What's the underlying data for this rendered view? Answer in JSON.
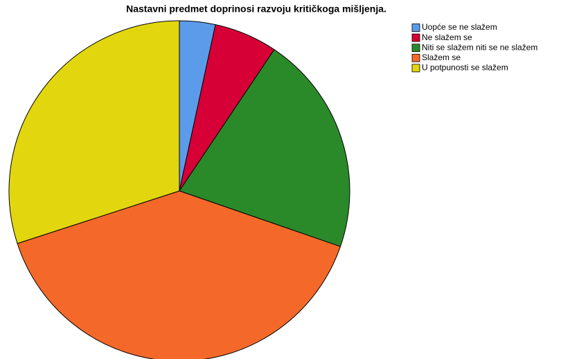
{
  "chart_data": {
    "type": "pie",
    "title": "Nastavni predmet doprinosi razvoju kritičkoga mišljenja.",
    "categories": [
      "Uopće se ne slažem",
      "Ne slažem se",
      "Niti se slažem niti se ne slažem",
      "Slažem se",
      "U potpunosti se slažem"
    ],
    "values": [
      3.4,
      6.0,
      20.9,
      39.7,
      30.0
    ],
    "colors": [
      "#5b9bea",
      "#d60036",
      "#2a8a2a",
      "#f4692a",
      "#e2d60f"
    ],
    "legend": "top-right"
  }
}
